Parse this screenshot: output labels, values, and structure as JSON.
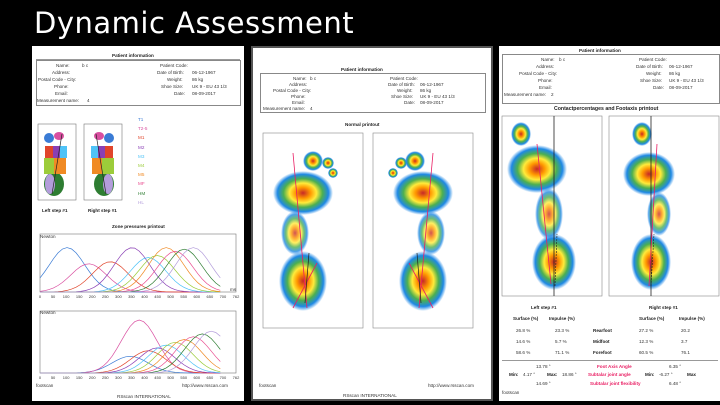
{
  "slide": {
    "title": "Dynamic Assessment"
  },
  "patient": {
    "heading": "Patient information",
    "name_label": "Name:",
    "name": "b c",
    "address_label": "Address:",
    "postal_label": "Postal Code - City:",
    "phone_label": "Phone:",
    "email_label": "Email:",
    "measurement_label": "Measurement name:",
    "code_label": "Patient Code:",
    "dob_label": "Date of Birth:",
    "dob": "06-12-1967",
    "weight_label": "Weight:",
    "weight": "86 kg",
    "shoe_label": "Shoe Size:",
    "shoe": "UK 9 - EU 43 1/3",
    "date_label": "Date:",
    "date": "08-09-2017"
  },
  "panel1": {
    "measurement": "4",
    "left_step": "Left step #1",
    "right_step": "Right step #1",
    "zones": [
      "T1",
      "T2-5",
      "M1",
      "M2",
      "M3",
      "M4",
      "M5",
      "MF",
      "HM",
      "HL"
    ],
    "zone_colors": [
      "#3a7bd5",
      "#d94fa0",
      "#e0452b",
      "#8a3fb5",
      "#4fc3f7",
      "#9ccc3a",
      "#f08a24",
      "#e94b8f",
      "#2e7d32",
      "#b39ddb"
    ],
    "chart_title": "Zone pressures printout",
    "ylabel": "Newton",
    "x_unit": "ms",
    "x_ticks": [
      "0",
      "50",
      "100",
      "150",
      "200",
      "250",
      "300",
      "350",
      "400",
      "450",
      "500",
      "550",
      "600",
      "650",
      "700",
      "762"
    ],
    "footer_logo": "footscan",
    "footer_url": "http://www.rsscan.com",
    "footer_company": "RSscan INTERNATIONAL"
  },
  "panel2": {
    "measurement": "4",
    "heading": "Normal printout",
    "footer_logo": "footscan",
    "footer_url": "http://www.rsscan.com",
    "footer_company": "RSscan INTERNATIONAL"
  },
  "panel3": {
    "measurement": "2",
    "heading": "Contactpercentages and Footaxis printout",
    "left_step": "Left step #1",
    "right_step": "Right step #1",
    "col_surface": "Surface (%)",
    "col_impulse": "Impulse (%)",
    "rows": [
      {
        "label": "Rearfoot",
        "ls": "26.8 %",
        "li": "23.3 %",
        "rs": "27.2 %",
        "ri": "20.2"
      },
      {
        "label": "Midfoot",
        "ls": "14.6 %",
        "li": "5.7 %",
        "rs": "12.3 %",
        "ri": "3.7"
      },
      {
        "label": "Forefoot",
        "ls": "58.6 %",
        "li": "71.1 %",
        "rs": "60.5 %",
        "ri": "76.1"
      }
    ],
    "foot_axis_label": "Foot Axis Angle",
    "subtalar_label": "Subtalar joint angle",
    "flex_label": "Subtalar joint flexibility",
    "min_label": "Min:",
    "max_label": "Max:",
    "l_axis": "13.78 °",
    "l_min": "4.17 °",
    "l_max": "18.86 °",
    "l_flex": "14.69 °",
    "r_axis": "6.35 °",
    "r_min": "-6.27 °",
    "r_max": "Max",
    "r_flex": "6.48 °",
    "footer_logo": "footscan"
  }
}
